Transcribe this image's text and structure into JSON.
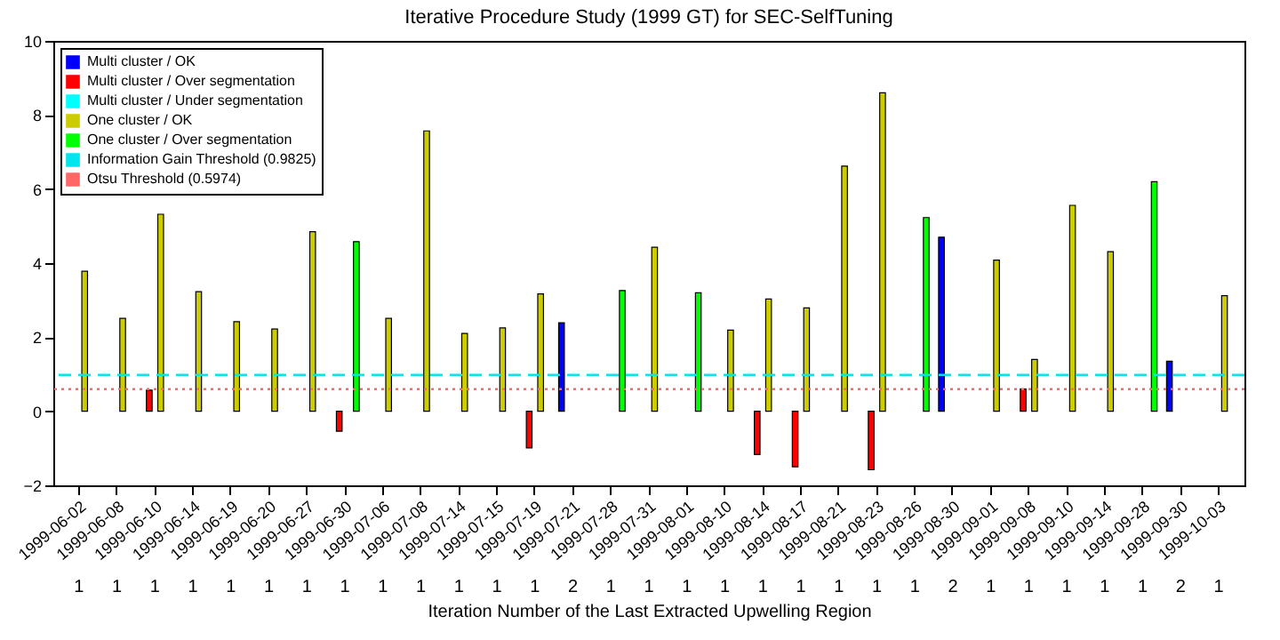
{
  "chart_data": {
    "type": "bar",
    "title": "Iterative Procedure Study (1999 GT) for SEC-SelfTuning",
    "xlabel": "Iteration Number of the Last Extracted Upwelling Region",
    "categories": [
      "1999-06-02",
      "1999-06-08",
      "1999-06-10",
      "1999-06-14",
      "1999-06-19",
      "1999-06-20",
      "1999-06-27",
      "1999-06-30",
      "1999-07-06",
      "1999-07-08",
      "1999-07-14",
      "1999-07-15",
      "1999-07-19",
      "1999-07-21",
      "1999-07-28",
      "1999-07-31",
      "1999-08-01",
      "1999-08-10",
      "1999-08-14",
      "1999-08-17",
      "1999-08-21",
      "1999-08-23",
      "1999-08-26",
      "1999-08-30",
      "1999-09-01",
      "1999-09-08",
      "1999-09-10",
      "1999-09-14",
      "1999-09-28",
      "1999-09-30",
      "1999-10-03"
    ],
    "series": [
      {
        "name": "Multi cluster / OK",
        "color": "#0000ff",
        "values": [
          null,
          null,
          null,
          null,
          null,
          null,
          null,
          null,
          null,
          null,
          null,
          null,
          null,
          2.39,
          null,
          null,
          null,
          null,
          null,
          null,
          null,
          null,
          null,
          4.7,
          null,
          null,
          null,
          null,
          null,
          1.35,
          null
        ]
      },
      {
        "name": "Multi cluster / Over segmentation",
        "color": "#ff0000",
        "values": [
          null,
          null,
          0.57,
          null,
          null,
          null,
          null,
          -0.54,
          null,
          null,
          null,
          null,
          -0.99,
          null,
          null,
          null,
          null,
          null,
          -1.17,
          -1.5,
          null,
          -1.58,
          null,
          null,
          null,
          0.6,
          null,
          null,
          null,
          null,
          null
        ]
      },
      {
        "name": "Multi cluster / Under segmentation",
        "color": "#00ffff",
        "values": [
          null,
          null,
          null,
          null,
          null,
          null,
          null,
          null,
          null,
          null,
          null,
          null,
          null,
          null,
          null,
          null,
          null,
          null,
          null,
          null,
          null,
          null,
          null,
          null,
          null,
          null,
          null,
          null,
          null,
          null,
          null
        ]
      },
      {
        "name": "One cluster / OK",
        "color": "#cccc00",
        "values": [
          3.78,
          2.51,
          5.32,
          3.23,
          2.42,
          2.22,
          4.85,
          null,
          2.51,
          7.57,
          2.1,
          2.25,
          3.17,
          null,
          null,
          4.43,
          null,
          2.19,
          3.03,
          2.79,
          6.62,
          8.6,
          null,
          null,
          4.08,
          1.4,
          5.56,
          4.31,
          null,
          null,
          3.12
        ]
      },
      {
        "name": "One cluster / Over segmentation",
        "color": "#00ff00",
        "values": [
          null,
          null,
          null,
          null,
          null,
          null,
          null,
          4.58,
          null,
          null,
          null,
          null,
          null,
          null,
          3.26,
          null,
          3.2,
          null,
          null,
          null,
          null,
          null,
          5.23,
          null,
          null,
          null,
          null,
          null,
          6.2,
          null,
          null
        ]
      }
    ],
    "ref_lines": [
      {
        "axis": "y",
        "value": 0.9825,
        "label": "Information Gain Threshold (0.9825)",
        "color": "#00e5ee",
        "line_style": "dashed"
      },
      {
        "axis": "y",
        "value": 0.5974,
        "label": "Otsu Threshold (0.5974)",
        "color": "#ff6666",
        "line_style": "dotted"
      }
    ],
    "annotations": [
      "1",
      "1",
      "1",
      "1",
      "1",
      "1",
      "1",
      "1",
      "1",
      "1",
      "1",
      "1",
      "1",
      "2",
      "1",
      "1",
      "1",
      "1",
      "1",
      "1",
      "1",
      "1",
      "1",
      "2",
      "1",
      "1",
      "1",
      "1",
      "1",
      "2",
      "1"
    ],
    "ylim": [
      -2,
      10
    ],
    "yticks": [
      -2,
      0,
      2,
      4,
      6,
      8,
      10
    ],
    "grid": false,
    "legend": "top left"
  }
}
